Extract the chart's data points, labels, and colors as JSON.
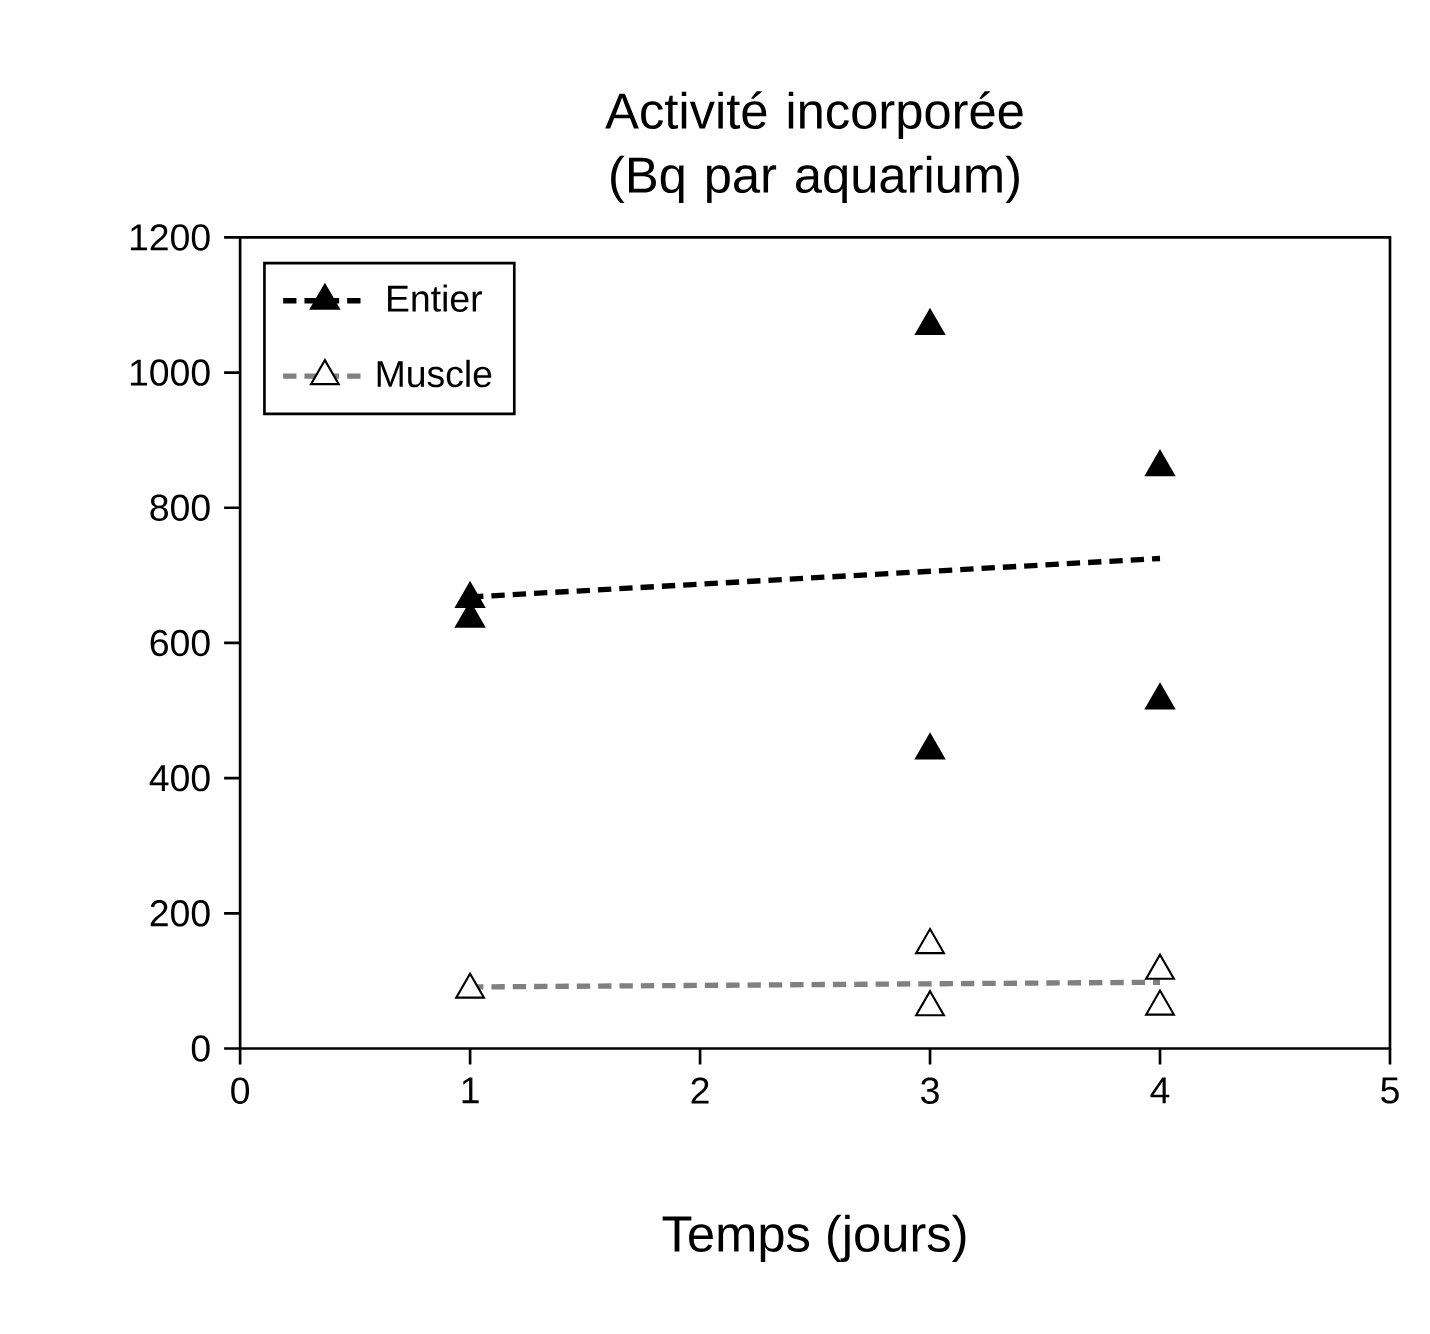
{
  "chart_data": {
    "type": "scatter",
    "title": "Activité incorporée (Bq par aquarium)",
    "xlabel": "Temps (jours)",
    "xlim": [
      0,
      5
    ],
    "xticks": [
      0,
      1,
      2,
      3,
      4,
      5
    ],
    "ylim": [
      0,
      1200
    ],
    "yticks": [
      0,
      200,
      400,
      600,
      800,
      1000,
      1200
    ],
    "grid": false,
    "legend": "top left",
    "marker": "triangle",
    "series": [
      {
        "name": "Entier",
        "color": "#000000",
        "x": [
          1,
          1,
          3,
          3,
          4,
          4
        ],
        "values": [
          665,
          636,
          1069,
          441,
          860,
          515
        ]
      },
      {
        "type": "line",
        "line_style": "dashed",
        "marker": "none",
        "color": "#000000",
        "x": [
          1,
          4
        ],
        "values": [
          668,
          725
        ]
      },
      {
        "name": "Muscle",
        "color": "#ffffff",
        "x": [
          1,
          3,
          3,
          4,
          4
        ],
        "values": [
          87,
          153,
          61,
          115,
          62
        ]
      },
      {
        "type": "line",
        "line_style": "dashed",
        "marker": "none",
        "color": "#808080",
        "x": [
          1,
          4
        ],
        "values": [
          91,
          98
        ]
      }
    ]
  }
}
